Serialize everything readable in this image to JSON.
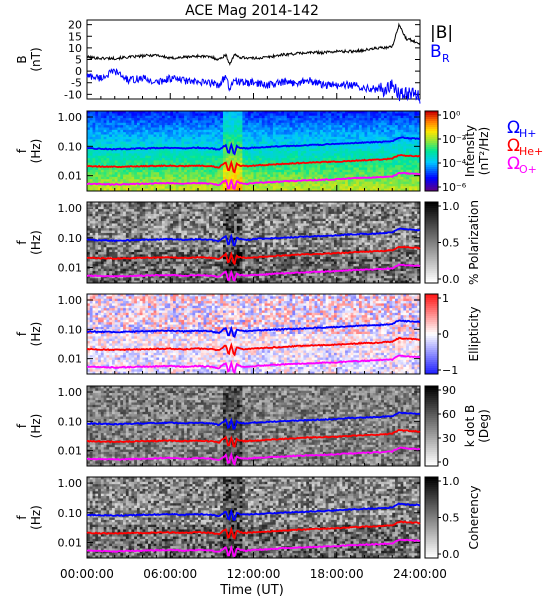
{
  "title": "ACE Mag 2014-142",
  "time_axis": {
    "label": "Time (UT)",
    "ticks": [
      "00:00:00",
      "06:00:00",
      "12:00:00",
      "18:00:00",
      "24:00:00"
    ],
    "range_hours": [
      0,
      24
    ]
  },
  "freq_axis": {
    "ylabel": "f",
    "yunit": "(Hz)",
    "scale": "log",
    "ticks": [
      "1.00",
      "0.10",
      "0.01"
    ],
    "tick_values": [
      1.0,
      0.1,
      0.01
    ],
    "ylim": [
      0.003,
      1.6
    ]
  },
  "colors": {
    "babs": "#000000",
    "br": "#0000ff",
    "h_plus": "#0000ff",
    "he_plus": "#ff0000",
    "o_plus": "#ff00ff"
  },
  "gyro_legend": [
    {
      "symbol": "Ω",
      "sub": "H+",
      "color": "#0000ff"
    },
    {
      "symbol": "Ω",
      "sub": "He+",
      "color": "#ff0000"
    },
    {
      "symbol": "Ω",
      "sub": "O+",
      "color": "#ff00ff"
    }
  ],
  "chart_data": [
    {
      "type": "line",
      "panel": "magnetic field",
      "ylabel": "B",
      "yunit": "(nT)",
      "ylim": [
        -12,
        22
      ],
      "yticks": [
        20,
        15,
        10,
        5,
        0,
        -5,
        -10
      ],
      "legend": [
        "|B|",
        "B_R"
      ],
      "legend_main": [
        "|B|",
        "B"
      ],
      "legend_sub": [
        "",
        "R"
      ],
      "x_hours": [
        0,
        1,
        2,
        3,
        4,
        5,
        6,
        7,
        8,
        9,
        9.5,
        10,
        10.3,
        10.6,
        11,
        12,
        13,
        14,
        15,
        16,
        17,
        18,
        19,
        20,
        21,
        21.5,
        22,
        22.5,
        23,
        23.5,
        24
      ],
      "series": [
        {
          "name": "|B|",
          "values": [
            6,
            5.5,
            5.5,
            6,
            6.5,
            7,
            5.5,
            6,
            6.5,
            6,
            5,
            7,
            3,
            7,
            6,
            5.5,
            6,
            7,
            7.5,
            8,
            8,
            8.5,
            8.5,
            9,
            10,
            10,
            10.5,
            20,
            14,
            13,
            12
          ]
        },
        {
          "name": "B_R",
          "values": [
            -2,
            -3,
            0,
            -4,
            -3,
            -5,
            -3,
            -4,
            -5,
            -5,
            -6,
            -2,
            -9,
            -3,
            -5,
            -5,
            -6,
            -5,
            -5,
            -4,
            -6,
            -6,
            -6,
            -7,
            -8,
            -8,
            -6,
            -10,
            -9,
            -10,
            -11
          ]
        }
      ]
    },
    {
      "type": "heatmap",
      "panel": "power spectral intensity",
      "colorbar_label": "Intensity",
      "colorbar_unit": "(nT²/Hz)",
      "colorbar_ticks": [
        "10⁰",
        "10⁻²",
        "10⁻⁴",
        "10⁻⁶"
      ],
      "colorbar_range": [
        -6,
        0
      ],
      "gyrofrequency_lines": true
    },
    {
      "type": "heatmap",
      "panel": "polarization",
      "colorbar_label": "% Polarization",
      "colorbar_ticks": [
        "1.0",
        "0.5",
        "0.0"
      ],
      "colorbar_range": [
        0,
        1
      ],
      "gyrofrequency_lines": true
    },
    {
      "type": "heatmap",
      "panel": "ellipticity",
      "colorbar_label": "Ellipticity",
      "colorbar_ticks": [
        "1",
        "0",
        "−1"
      ],
      "colorbar_range": [
        -1,
        1
      ],
      "gyrofrequency_lines": true
    },
    {
      "type": "heatmap",
      "panel": "wave normal angle",
      "colorbar_label": "k dot B",
      "colorbar_unit": "(Deg)",
      "colorbar_ticks": [
        "90",
        "60",
        "30",
        "0"
      ],
      "colorbar_range": [
        0,
        90
      ],
      "gyrofrequency_lines": true
    },
    {
      "type": "heatmap",
      "panel": "coherency",
      "colorbar_label": "Coherency",
      "colorbar_ticks": [
        "1.0",
        "0.5",
        "0.0"
      ],
      "colorbar_range": [
        0,
        1
      ],
      "gyrofrequency_lines": true
    }
  ],
  "gyrofrequency_hz": {
    "x_hours": [
      0,
      2,
      4,
      6,
      7,
      8,
      9,
      9.5,
      10,
      10.2,
      10.4,
      10.6,
      10.8,
      11,
      11.5,
      12,
      14,
      16,
      18,
      19,
      20,
      21,
      22,
      22.5,
      23,
      24
    ],
    "h_plus": [
      0.085,
      0.08,
      0.085,
      0.09,
      0.085,
      0.09,
      0.085,
      0.075,
      0.11,
      0.05,
      0.11,
      0.045,
      0.1,
      0.09,
      0.085,
      0.09,
      0.1,
      0.11,
      0.12,
      0.13,
      0.135,
      0.14,
      0.15,
      0.2,
      0.19,
      0.18
    ],
    "he_plus": [
      0.021,
      0.02,
      0.021,
      0.022,
      0.021,
      0.022,
      0.021,
      0.019,
      0.028,
      0.012,
      0.028,
      0.011,
      0.025,
      0.022,
      0.021,
      0.022,
      0.025,
      0.028,
      0.03,
      0.032,
      0.034,
      0.035,
      0.038,
      0.05,
      0.048,
      0.045
    ],
    "o_plus": [
      0.0053,
      0.005,
      0.0053,
      0.0056,
      0.0053,
      0.0056,
      0.0053,
      0.0047,
      0.007,
      0.003,
      0.007,
      0.0028,
      0.0063,
      0.0056,
      0.0053,
      0.0056,
      0.0063,
      0.007,
      0.0075,
      0.0081,
      0.0084,
      0.0088,
      0.0094,
      0.0125,
      0.012,
      0.0113
    ]
  }
}
